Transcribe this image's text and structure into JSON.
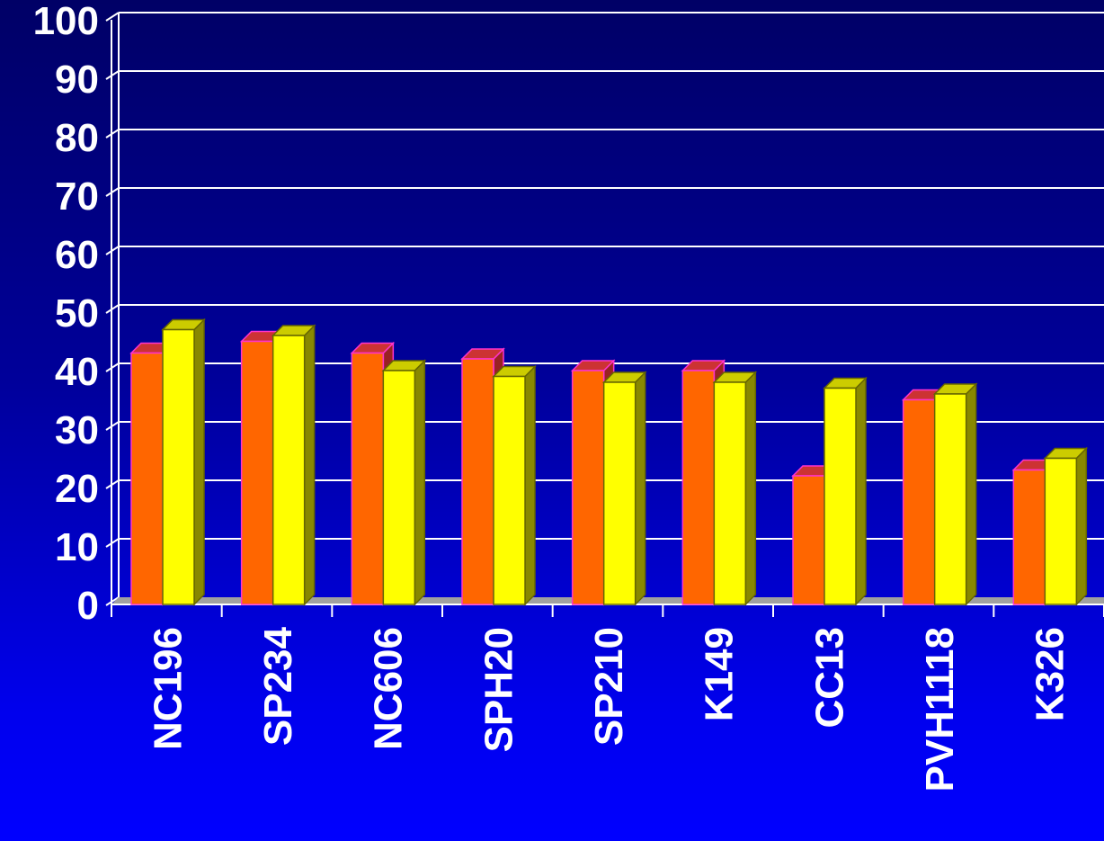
{
  "colors": {
    "series1_front": "#ff6600",
    "series1_side": "#992222",
    "series1_top": "#cc3333",
    "series1_edge": "#ff33cc",
    "series2_front": "#ffff00",
    "series2_side": "#888800",
    "series2_top": "#cccc00",
    "series2_edge": "#666600",
    "grid": "#ffffff",
    "floor": "#a0a0a0"
  },
  "chart_data": {
    "type": "bar",
    "title": "",
    "xlabel": "",
    "ylabel": "",
    "ylim": [
      0,
      100
    ],
    "yticks": [
      0,
      10,
      20,
      30,
      40,
      50,
      60,
      70,
      80,
      90,
      100
    ],
    "grid": true,
    "three_d": true,
    "categories": [
      "NC196",
      "SP234",
      "NC606",
      "SPH20",
      "SP210",
      "K149",
      "CC13",
      "PVH1118",
      "K326"
    ],
    "series": [
      {
        "values": [
          43,
          45,
          43,
          42,
          40,
          40,
          22,
          35,
          23
        ]
      },
      {
        "values": [
          47,
          46,
          40,
          39,
          38,
          38,
          37,
          36,
          25
        ]
      }
    ]
  }
}
